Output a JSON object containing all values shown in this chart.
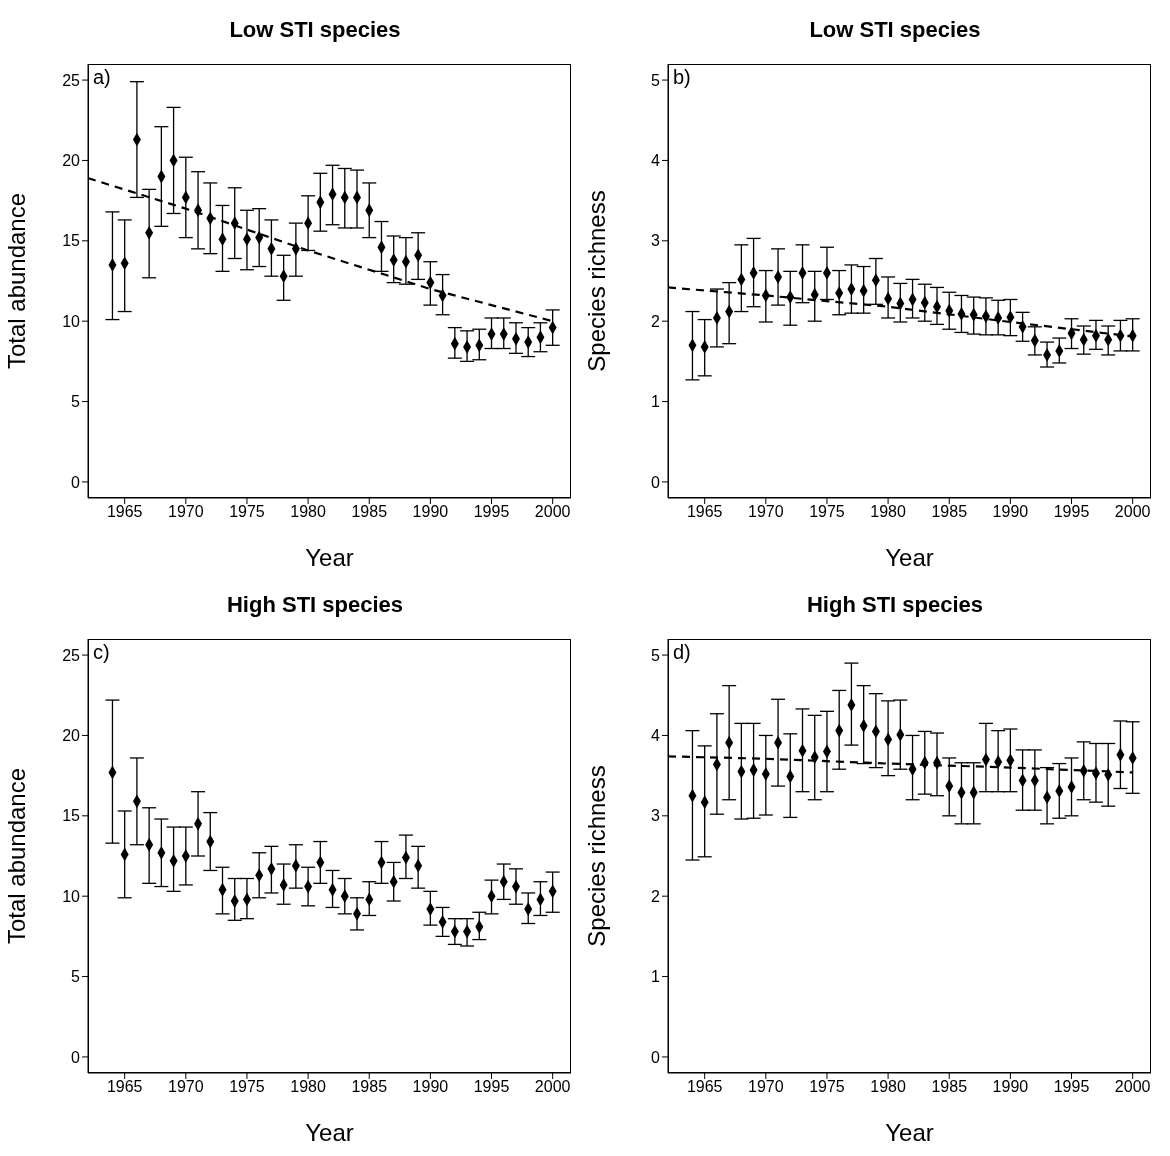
{
  "chart_data": [
    {
      "type": "scatter",
      "title": "Low STI species",
      "xlabel": "Year",
      "ylabel": "Total abundance",
      "annotations": [
        "a)"
      ],
      "xlim": [
        1962,
        2001.5
      ],
      "ylim": [
        -1,
        26
      ],
      "xticks": [
        1965,
        1970,
        1975,
        1980,
        1985,
        1990,
        1995,
        2000
      ],
      "yticks": [
        0,
        5,
        10,
        15,
        20,
        25
      ],
      "x": [
        1964,
        1965,
        1966,
        1967,
        1968,
        1969,
        1970,
        1971,
        1972,
        1973,
        1974,
        1975,
        1976,
        1977,
        1978,
        1979,
        1980,
        1981,
        1982,
        1983,
        1984,
        1985,
        1986,
        1987,
        1988,
        1989,
        1990,
        1991,
        1992,
        1993,
        1994,
        1995,
        1996,
        1997,
        1998,
        1999,
        2000
      ],
      "series": [
        {
          "color": "#000000",
          "marker": "diamond",
          "values": [
            13.5,
            13.6,
            21.3,
            15.5,
            19.0,
            20.0,
            17.7,
            16.9,
            16.4,
            15.1,
            16.1,
            15.1,
            15.2,
            14.5,
            12.8,
            14.5,
            16.1,
            17.4,
            17.9,
            17.7,
            17.7,
            16.9,
            14.6,
            13.8,
            13.7,
            14.1,
            12.4,
            11.6,
            8.6,
            8.4,
            8.5,
            9.2,
            9.2,
            8.9,
            8.7,
            9.0,
            9.6
          ],
          "errors": [
            [
              10.1,
              16.8
            ],
            [
              10.6,
              16.3
            ],
            [
              17.7,
              24.9
            ],
            [
              12.7,
              18.2
            ],
            [
              15.9,
              22.1
            ],
            [
              16.7,
              23.3
            ],
            [
              15.2,
              20.2
            ],
            [
              14.5,
              19.3
            ],
            [
              14.2,
              18.6
            ],
            [
              13.1,
              17.2
            ],
            [
              13.9,
              18.3
            ],
            [
              13.2,
              16.9
            ],
            [
              13.4,
              17.0
            ],
            [
              12.8,
              16.3
            ],
            [
              11.3,
              14.1
            ],
            [
              12.8,
              16.1
            ],
            [
              14.4,
              17.8
            ],
            [
              15.6,
              19.2
            ],
            [
              16.0,
              19.7
            ],
            [
              15.8,
              19.5
            ],
            [
              15.8,
              19.4
            ],
            [
              15.2,
              18.6
            ],
            [
              13.1,
              16.2
            ],
            [
              12.4,
              15.3
            ],
            [
              12.3,
              15.2
            ],
            [
              12.6,
              15.5
            ],
            [
              11.0,
              13.7
            ],
            [
              10.4,
              12.9
            ],
            [
              7.7,
              9.6
            ],
            [
              7.5,
              9.4
            ],
            [
              7.6,
              9.5
            ],
            [
              8.3,
              10.2
            ],
            [
              8.3,
              10.2
            ],
            [
              8.0,
              9.9
            ],
            [
              7.8,
              9.6
            ],
            [
              8.1,
              9.9
            ],
            [
              8.5,
              10.7
            ]
          ]
        },
        {
          "type": "line",
          "color": "#000000",
          "line_style": "dashed",
          "marker": "none",
          "x": [
            1962,
            1970,
            1980,
            1990,
            2000
          ],
          "values": [
            18.9,
            17.0,
            14.4,
            12.0,
            10.0
          ]
        }
      ]
    },
    {
      "type": "scatter",
      "title": "Low STI species",
      "xlabel": "Year",
      "ylabel": "Species richness",
      "annotations": [
        "b)"
      ],
      "xlim": [
        1962,
        2001.5
      ],
      "ylim": [
        -0.2,
        5.2
      ],
      "xticks": [
        1965,
        1970,
        1975,
        1980,
        1985,
        1990,
        1995,
        2000
      ],
      "yticks": [
        0,
        1,
        2,
        3,
        4,
        5
      ],
      "x": [
        1964,
        1965,
        1966,
        1967,
        1968,
        1969,
        1970,
        1971,
        1972,
        1973,
        1974,
        1975,
        1976,
        1977,
        1978,
        1979,
        1980,
        1981,
        1982,
        1983,
        1984,
        1985,
        1986,
        1987,
        1988,
        1989,
        1990,
        1991,
        1992,
        1993,
        1994,
        1995,
        1996,
        1997,
        1998,
        1999,
        2000
      ],
      "series": [
        {
          "color": "#000000",
          "marker": "diamond",
          "values": [
            1.7,
            1.68,
            2.04,
            2.12,
            2.52,
            2.6,
            2.32,
            2.55,
            2.3,
            2.6,
            2.33,
            2.6,
            2.35,
            2.4,
            2.38,
            2.51,
            2.28,
            2.22,
            2.27,
            2.23,
            2.18,
            2.13,
            2.09,
            2.08,
            2.06,
            2.04,
            2.05,
            1.93,
            1.76,
            1.58,
            1.63,
            1.85,
            1.77,
            1.82,
            1.77,
            1.82,
            1.82
          ],
          "errors": [
            [
              1.27,
              2.12
            ],
            [
              1.32,
              2.02
            ],
            [
              1.68,
              2.4
            ],
            [
              1.72,
              2.48
            ],
            [
              2.12,
              2.95
            ],
            [
              2.18,
              3.03
            ],
            [
              1.99,
              2.63
            ],
            [
              2.2,
              2.9
            ],
            [
              1.95,
              2.62
            ],
            [
              2.23,
              2.95
            ],
            [
              2.0,
              2.62
            ],
            [
              2.27,
              2.92
            ],
            [
              2.08,
              2.63
            ],
            [
              2.1,
              2.7
            ],
            [
              2.1,
              2.68
            ],
            [
              2.21,
              2.78
            ],
            [
              2.04,
              2.55
            ],
            [
              1.99,
              2.47
            ],
            [
              2.04,
              2.52
            ],
            [
              2.0,
              2.46
            ],
            [
              1.96,
              2.42
            ],
            [
              1.9,
              2.36
            ],
            [
              1.86,
              2.32
            ],
            [
              1.84,
              2.3
            ],
            [
              1.83,
              2.29
            ],
            [
              1.83,
              2.26
            ],
            [
              1.82,
              2.27
            ],
            [
              1.75,
              2.11
            ],
            [
              1.58,
              1.93
            ],
            [
              1.43,
              1.74
            ],
            [
              1.48,
              1.79
            ],
            [
              1.66,
              2.03
            ],
            [
              1.59,
              1.94
            ],
            [
              1.65,
              2.01
            ],
            [
              1.58,
              1.94
            ],
            [
              1.63,
              2.01
            ],
            [
              1.63,
              2.03
            ]
          ]
        },
        {
          "type": "line",
          "color": "#000000",
          "line_style": "dashed",
          "marker": "none",
          "x": [
            1962,
            1970,
            1980,
            1990,
            2000
          ],
          "values": [
            2.42,
            2.32,
            2.18,
            1.99,
            1.81
          ]
        }
      ]
    },
    {
      "type": "scatter",
      "title": "High STI species",
      "xlabel": "Year",
      "ylabel": "Total abundance",
      "annotations": [
        "c)"
      ],
      "xlim": [
        1962,
        2001.5
      ],
      "ylim": [
        -1,
        26
      ],
      "xticks": [
        1965,
        1970,
        1975,
        1980,
        1985,
        1990,
        1995,
        2000
      ],
      "yticks": [
        0,
        5,
        10,
        15,
        20,
        25
      ],
      "x": [
        1964,
        1965,
        1966,
        1967,
        1968,
        1969,
        1970,
        1971,
        1972,
        1973,
        1974,
        1975,
        1976,
        1977,
        1978,
        1979,
        1980,
        1981,
        1982,
        1983,
        1984,
        1985,
        1986,
        1987,
        1988,
        1989,
        1990,
        1991,
        1992,
        1993,
        1994,
        1995,
        1996,
        1997,
        1998,
        1999,
        2000
      ],
      "series": [
        {
          "color": "#000000",
          "marker": "diamond",
          "values": [
            17.7,
            12.6,
            15.9,
            13.2,
            12.7,
            12.2,
            12.5,
            14.5,
            13.4,
            10.4,
            9.7,
            9.8,
            11.3,
            11.7,
            10.7,
            11.9,
            10.6,
            12.1,
            10.4,
            10.0,
            8.9,
            9.8,
            12.1,
            10.9,
            12.4,
            11.9,
            9.2,
            8.4,
            7.8,
            7.8,
            8.1,
            10.0,
            10.9,
            10.6,
            9.2,
            9.8,
            10.3
          ],
          "errors": [
            [
              13.3,
              22.2
            ],
            [
              9.9,
              15.3
            ],
            [
              13.2,
              18.6
            ],
            [
              10.8,
              15.5
            ],
            [
              10.6,
              14.8
            ],
            [
              10.3,
              14.3
            ],
            [
              10.7,
              14.3
            ],
            [
              12.5,
              16.5
            ],
            [
              11.6,
              15.2
            ],
            [
              8.9,
              11.8
            ],
            [
              8.5,
              11.1
            ],
            [
              8.6,
              11.1
            ],
            [
              9.9,
              12.7
            ],
            [
              10.2,
              13.1
            ],
            [
              9.5,
              12.0
            ],
            [
              10.5,
              13.2
            ],
            [
              9.4,
              11.8
            ],
            [
              10.8,
              13.4
            ],
            [
              9.3,
              11.6
            ],
            [
              8.9,
              11.1
            ],
            [
              7.9,
              9.9
            ],
            [
              8.8,
              10.9
            ],
            [
              10.8,
              13.4
            ],
            [
              9.7,
              12.1
            ],
            [
              11.1,
              13.8
            ],
            [
              10.5,
              13.1
            ],
            [
              8.2,
              10.3
            ],
            [
              7.5,
              9.3
            ],
            [
              7.0,
              8.6
            ],
            [
              6.9,
              8.6
            ],
            [
              7.3,
              9.0
            ],
            [
              8.9,
              11.0
            ],
            [
              9.8,
              12.0
            ],
            [
              9.5,
              11.7
            ],
            [
              8.3,
              10.2
            ],
            [
              8.8,
              10.9
            ],
            [
              9.0,
              11.5
            ]
          ]
        }
      ]
    },
    {
      "type": "scatter",
      "title": "High STI species",
      "xlabel": "Year",
      "ylabel": "Species richness",
      "annotations": [
        "d)"
      ],
      "xlim": [
        1962,
        2001.5
      ],
      "ylim": [
        -0.2,
        5.2
      ],
      "xticks": [
        1965,
        1970,
        1975,
        1980,
        1985,
        1990,
        1995,
        2000
      ],
      "yticks": [
        0,
        1,
        2,
        3,
        4,
        5
      ],
      "x": [
        1964,
        1965,
        1966,
        1967,
        1968,
        1969,
        1970,
        1971,
        1972,
        1973,
        1974,
        1975,
        1976,
        1977,
        1978,
        1979,
        1980,
        1981,
        1982,
        1983,
        1984,
        1985,
        1986,
        1987,
        1988,
        1989,
        1990,
        1991,
        1992,
        1993,
        1994,
        1995,
        1996,
        1997,
        1998,
        1999,
        2000
      ],
      "series": [
        {
          "color": "#000000",
          "marker": "diamond",
          "values": [
            3.25,
            3.17,
            3.64,
            3.91,
            3.55,
            3.57,
            3.52,
            3.91,
            3.49,
            3.81,
            3.73,
            3.8,
            4.06,
            4.38,
            4.12,
            4.05,
            3.95,
            4.01,
            3.58,
            3.66,
            3.66,
            3.37,
            3.29,
            3.29,
            3.7,
            3.67,
            3.69,
            3.44,
            3.44,
            3.23,
            3.31,
            3.36,
            3.56,
            3.53,
            3.51,
            3.76,
            3.72
          ],
          "errors": [
            [
              2.45,
              4.06
            ],
            [
              2.49,
              3.87
            ],
            [
              3.02,
              4.27
            ],
            [
              3.2,
              4.62
            ],
            [
              2.96,
              4.15
            ],
            [
              2.97,
              4.15
            ],
            [
              3.01,
              4.0
            ],
            [
              3.37,
              4.45
            ],
            [
              2.98,
              4.02
            ],
            [
              3.3,
              4.33
            ],
            [
              3.2,
              4.25
            ],
            [
              3.3,
              4.3
            ],
            [
              3.58,
              4.56
            ],
            [
              3.88,
              4.9
            ],
            [
              3.65,
              4.62
            ],
            [
              3.6,
              4.52
            ],
            [
              3.5,
              4.43
            ],
            [
              3.58,
              4.44
            ],
            [
              3.2,
              4.0
            ],
            [
              3.27,
              4.05
            ],
            [
              3.25,
              4.03
            ],
            [
              3.0,
              3.72
            ],
            [
              2.9,
              3.66
            ],
            [
              2.9,
              3.66
            ],
            [
              3.3,
              4.15
            ],
            [
              3.3,
              4.06
            ],
            [
              3.3,
              4.08
            ],
            [
              3.07,
              3.82
            ],
            [
              3.07,
              3.82
            ],
            [
              2.9,
              3.6
            ],
            [
              2.97,
              3.65
            ],
            [
              3.0,
              3.72
            ],
            [
              3.2,
              3.92
            ],
            [
              3.17,
              3.9
            ],
            [
              3.12,
              3.9
            ],
            [
              3.34,
              4.18
            ],
            [
              3.28,
              4.17
            ]
          ]
        },
        {
          "type": "line",
          "color": "#000000",
          "line_style": "dashed",
          "marker": "none",
          "x": [
            1962,
            1970,
            1980,
            1990,
            2000
          ],
          "values": [
            3.74,
            3.71,
            3.65,
            3.6,
            3.54
          ]
        }
      ]
    }
  ]
}
